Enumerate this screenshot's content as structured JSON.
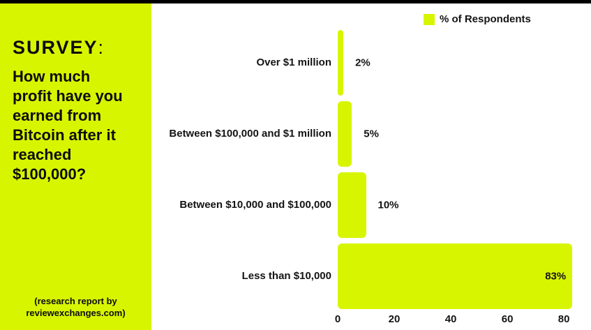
{
  "colors": {
    "accent": "#d8f500",
    "text": "#0d0d0d",
    "background": "#ffffff",
    "top_border": "#000000"
  },
  "panel": {
    "title_word": "SURVEY",
    "title_colon": ":",
    "question": "How much\nprofit have you\nearned from\nBitcoin after it\nreached\n$100,000?",
    "source_note": "(research report by\nreviewexchanges.com)"
  },
  "chart_data": {
    "type": "bar",
    "orientation": "horizontal",
    "title": "",
    "legend": "% of Respondents",
    "legend_position": "top-right",
    "categories": [
      "Over $1 million",
      "Between $100,000 and $1 million",
      "Between $10,000 and $100,000",
      "Less than $10,000"
    ],
    "values": [
      2,
      5,
      10,
      83
    ],
    "value_labels": [
      "2%",
      "5%",
      "10%",
      "83%"
    ],
    "xlabel": "",
    "ylabel": "",
    "xlim": [
      0,
      80
    ],
    "x_ticks": [
      0,
      20,
      40,
      60,
      80
    ],
    "grid": false,
    "bar_color": "#d8f500"
  }
}
